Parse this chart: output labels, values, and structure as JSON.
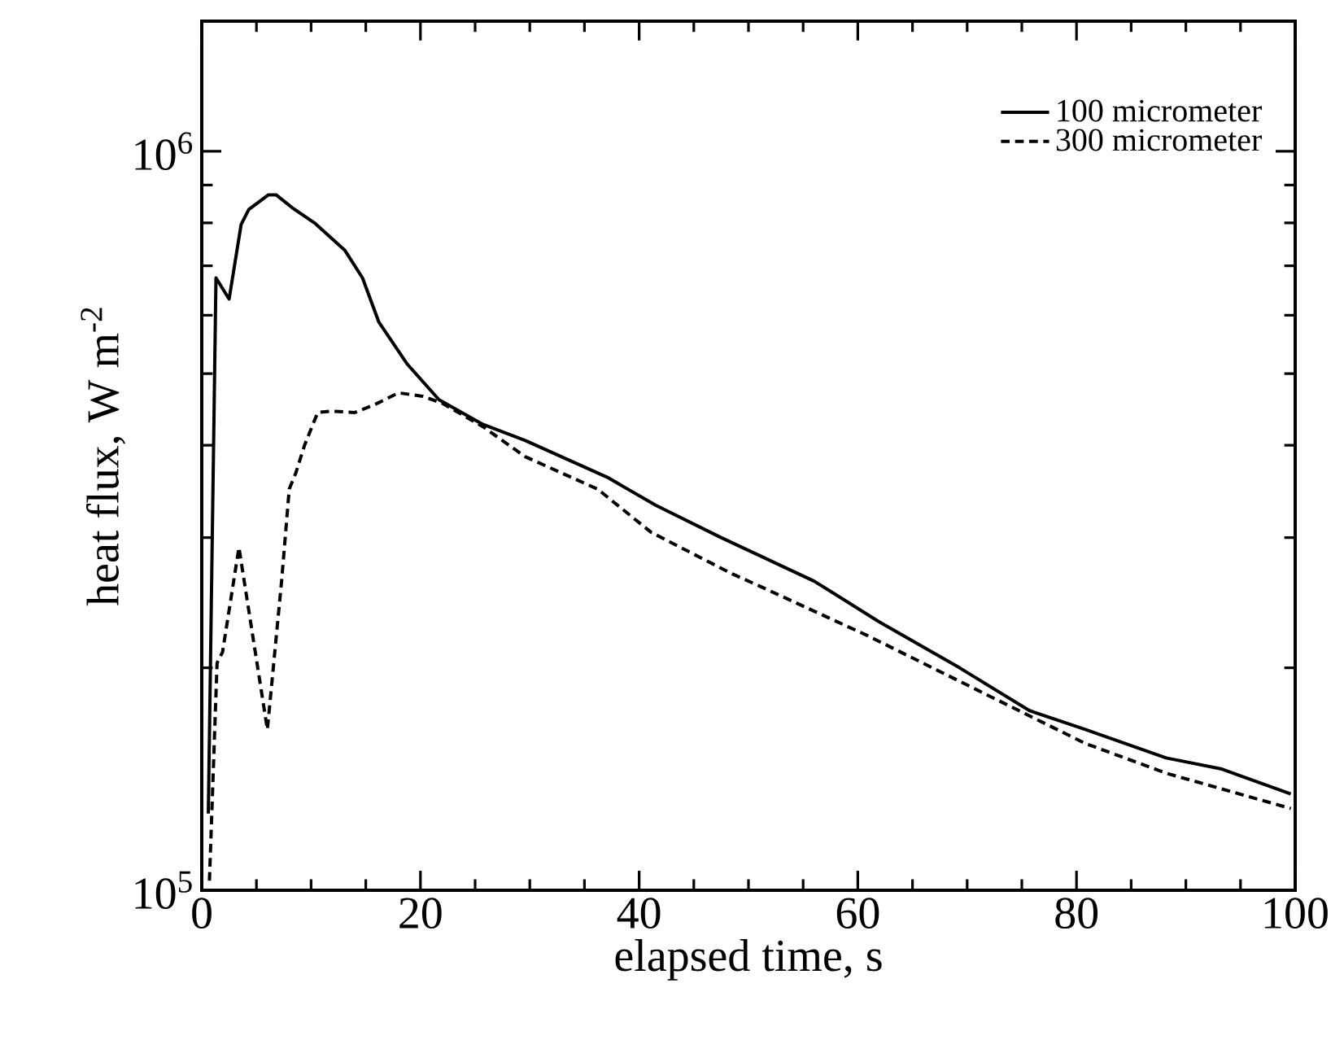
{
  "chart_data": {
    "type": "line",
    "xlabel": "elapsed time, s",
    "ylabel": "heat flux, W m$^{-2}$",
    "log": "y",
    "grid": false,
    "legend": "top right",
    "marker": "none",
    "xlim": [
      0,
      100
    ],
    "xticks": [
      0,
      20,
      40,
      60,
      80,
      100
    ],
    "ylim": [
      100000,
      1500000
    ],
    "yticks": [
      {
        "value": 100000,
        "label": "10$^{5}$"
      },
      {
        "value": 1000000,
        "label": "10$^{6}$"
      }
    ],
    "series": [
      {
        "name": "100 micrometer",
        "color": "#000000",
        "line_style": "solid",
        "x": [
          0.6,
          1.3,
          2.5,
          3.6,
          4.3,
          6.1,
          6.8,
          8.3,
          10.3,
          13.1,
          14.7,
          16.2,
          18.8,
          21.7,
          25.7,
          29.6,
          37.1,
          41.5,
          47.5,
          56.0,
          61.9,
          69.3,
          75.7,
          80.8,
          88.2,
          93.2,
          99.6
        ],
        "values": [
          127000,
          674000,
          631000,
          796000,
          834000,
          873000,
          873000,
          838000,
          800000,
          734000,
          674000,
          587000,
          515000,
          461000,
          427000,
          406000,
          362000,
          332000,
          300000,
          262000,
          231000,
          200000,
          175000,
          165000,
          151000,
          146000,
          135000
        ]
      },
      {
        "name": "300 micrometer",
        "color": "#000000",
        "line_style": "dashed",
        "x": [
          0.7,
          1.4,
          1.9,
          3.4,
          6.0,
          7.3,
          8.0,
          8.6,
          9.4,
          10.6,
          11.8,
          14.0,
          15.8,
          18.0,
          20.2,
          22.0,
          25.7,
          29.6,
          36.2,
          41.1,
          48.5,
          51.0,
          60.9,
          70.8,
          80.8,
          88.2,
          99.6
        ],
        "values": [
          103000,
          203000,
          210000,
          291000,
          165000,
          262000,
          349000,
          367000,
          400000,
          443000,
          445000,
          443000,
          454000,
          471000,
          466000,
          456000,
          424000,
          386000,
          349000,
          305000,
          268000,
          258000,
          221000,
          187000,
          158000,
          144000,
          129000
        ]
      }
    ]
  }
}
